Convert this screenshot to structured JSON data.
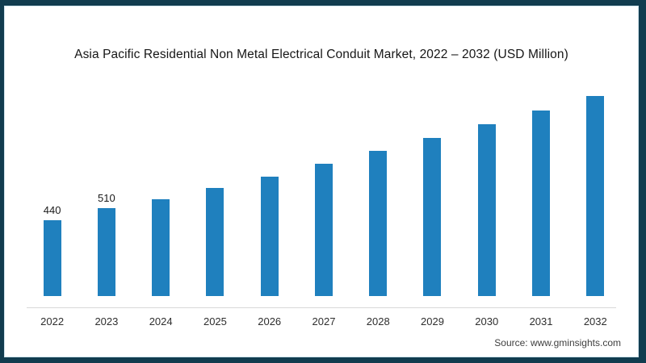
{
  "chart_data": {
    "type": "bar",
    "title": "Asia Pacific Residential Non Metal Electrical Conduit Market, 2022 – 2032 (USD Million)",
    "categories": [
      "2022",
      "2023",
      "2024",
      "2025",
      "2026",
      "2027",
      "2028",
      "2029",
      "2030",
      "2031",
      "2032"
    ],
    "values": [
      440,
      510,
      565,
      630,
      695,
      770,
      845,
      920,
      1000,
      1080,
      1165
    ],
    "data_labels": {
      "2022": "440",
      "2023": "510"
    },
    "xlabel": "",
    "ylabel": "",
    "ylim": [
      0,
      1200
    ],
    "grid": false,
    "legend": "none",
    "units": "USD Million"
  },
  "source": "Source: www.gminsights.com",
  "colors": {
    "frame_border": "#113c4f",
    "inner_line": "#cfe3ec",
    "bar": "#1f80be",
    "axis_line": "#d9d9d9",
    "title_text": "#161616",
    "label_text": "#1a1a1a",
    "tick_text": "#2e2e2e",
    "source_text": "#3f3f3f",
    "background": "#ffffff"
  }
}
